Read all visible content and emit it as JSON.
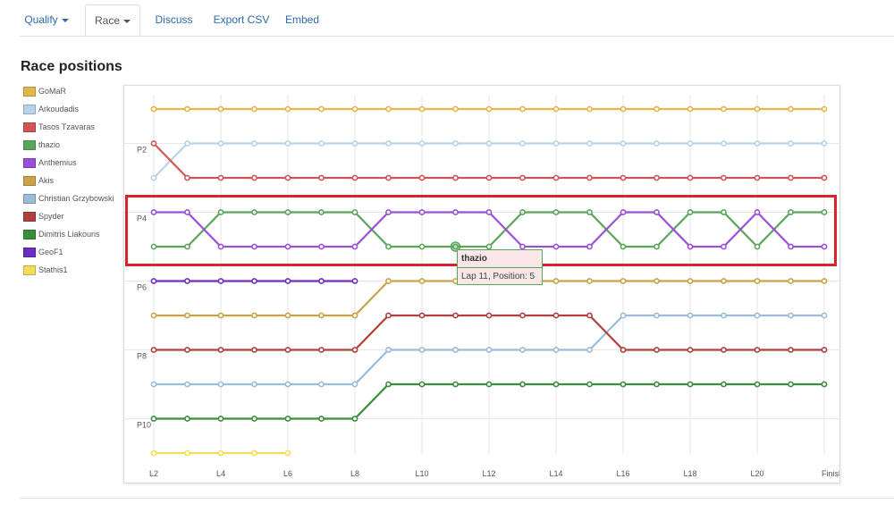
{
  "tabs": [
    {
      "label": "Qualify",
      "caret": true,
      "active": false
    },
    {
      "label": "Race",
      "caret": true,
      "active": true
    },
    {
      "label": "Discuss",
      "caret": false,
      "active": false
    },
    {
      "label": "Export CSV",
      "caret": false,
      "active": false
    },
    {
      "label": "Embed",
      "caret": false,
      "active": false
    }
  ],
  "page_title": "Race positions",
  "tooltip": {
    "name": "thazio",
    "text": "Lap 11, Position: 5"
  },
  "highlight_color": "#d9232b",
  "chart_data": {
    "type": "line",
    "title": "Race positions",
    "xlabel": "",
    "ylabel": "",
    "x": [
      "L2",
      "L3",
      "L4",
      "L5",
      "L6",
      "L7",
      "L8",
      "L9",
      "L10",
      "L11",
      "L12",
      "L13",
      "L14",
      "L15",
      "L16",
      "L17",
      "L18",
      "L19",
      "L20",
      "L21",
      "Finish"
    ],
    "x_tick_labels": [
      "L2",
      "L4",
      "L6",
      "L8",
      "L10",
      "L12",
      "L14",
      "L16",
      "L18",
      "L20",
      "Finish"
    ],
    "y_tick_labels": [
      "P2",
      "P4",
      "P6",
      "P8",
      "P10"
    ],
    "y_inverted": true,
    "ylim": [
      0.4,
      11.2
    ],
    "grid": true,
    "legend_position": "left",
    "series": [
      {
        "name": "GoMaR",
        "color": "#e2b64a",
        "values": [
          1,
          1,
          1,
          1,
          1,
          1,
          1,
          1,
          1,
          1,
          1,
          1,
          1,
          1,
          1,
          1,
          1,
          1,
          1,
          1,
          1
        ]
      },
      {
        "name": "Arkoudadis",
        "color": "#b6d3ea",
        "values": [
          3,
          2,
          2,
          2,
          2,
          2,
          2,
          2,
          2,
          2,
          2,
          2,
          2,
          2,
          2,
          2,
          2,
          2,
          2,
          2,
          2
        ]
      },
      {
        "name": "Tasos Tzavaras",
        "color": "#d35454",
        "values": [
          2,
          3,
          3,
          3,
          3,
          3,
          3,
          3,
          3,
          3,
          3,
          3,
          3,
          3,
          3,
          3,
          3,
          3,
          3,
          3,
          3
        ]
      },
      {
        "name": "thazio",
        "color": "#5aa55a",
        "values": [
          5,
          5,
          4,
          4,
          4,
          4,
          4,
          5,
          5,
          5,
          5,
          4,
          4,
          4,
          5,
          5,
          4,
          4,
          5,
          4,
          4
        ]
      },
      {
        "name": "Anthemius",
        "color": "#9a4fd8",
        "values": [
          4,
          4,
          5,
          5,
          5,
          5,
          5,
          4,
          4,
          4,
          4,
          5,
          5,
          5,
          4,
          4,
          5,
          5,
          4,
          5,
          5
        ]
      },
      {
        "name": "Akis",
        "color": "#c9a24a",
        "values": [
          7,
          7,
          7,
          7,
          7,
          7,
          7,
          6,
          6,
          6,
          6,
          6,
          6,
          6,
          6,
          6,
          6,
          6,
          6,
          6,
          6
        ]
      },
      {
        "name": "Christian Grzybowski",
        "color": "#9bbbd8",
        "values": [
          9,
          9,
          9,
          9,
          9,
          9,
          9,
          8,
          8,
          8,
          8,
          8,
          8,
          8,
          7,
          7,
          7,
          7,
          7,
          7,
          7
        ]
      },
      {
        "name": "Spyder",
        "color": "#b0403f",
        "values": [
          8,
          8,
          8,
          8,
          8,
          8,
          8,
          7,
          7,
          7,
          7,
          7,
          7,
          7,
          8,
          8,
          8,
          8,
          8,
          8,
          8
        ]
      },
      {
        "name": "Dimitris Liakouris",
        "color": "#3a8d3a",
        "values": [
          10,
          10,
          10,
          10,
          10,
          10,
          10,
          9,
          9,
          9,
          9,
          9,
          9,
          9,
          9,
          9,
          9,
          9,
          9,
          9,
          9
        ]
      },
      {
        "name": "GeoF1",
        "color": "#6a2fc0",
        "values": [
          6,
          6,
          6,
          6,
          6,
          6,
          6,
          null,
          null,
          null,
          null,
          null,
          null,
          null,
          null,
          null,
          null,
          null,
          null,
          null,
          null
        ]
      },
      {
        "name": "Stathis1",
        "color": "#f2dc5c",
        "values": [
          11,
          11,
          11,
          11,
          11,
          null,
          null,
          null,
          null,
          null,
          null,
          null,
          null,
          null,
          null,
          null,
          null,
          null,
          null,
          null,
          null
        ]
      }
    ]
  }
}
